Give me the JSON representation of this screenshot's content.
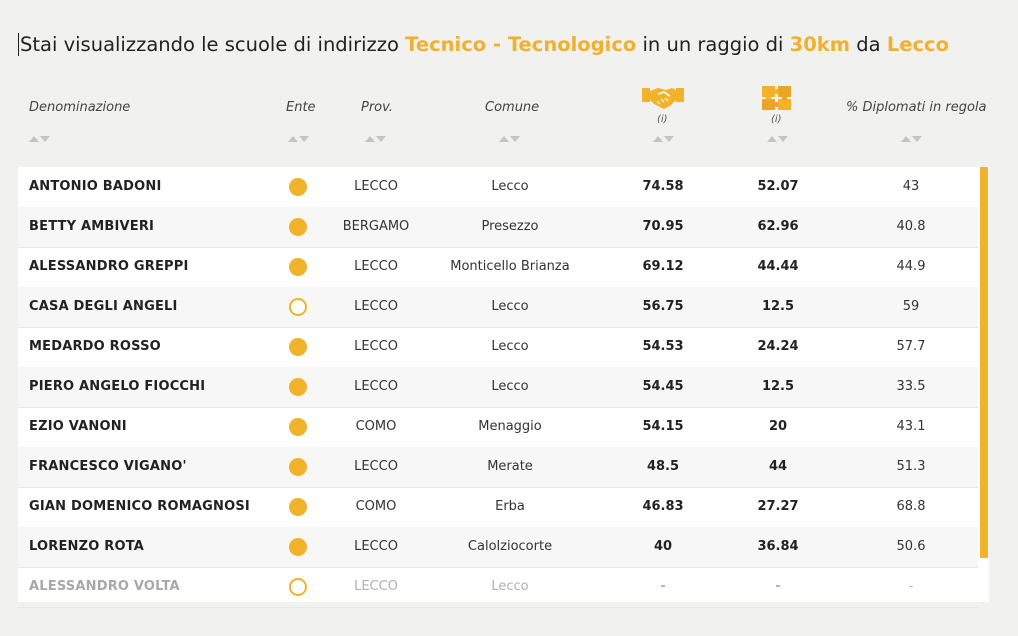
{
  "title": {
    "prefix": "Stai visualizzando le scuole di indirizzo ",
    "indirizzo": "Tecnico - Tecnologico",
    "middle": " in un raggio di ",
    "raggio": "30km",
    "da": " da ",
    "citta": "Lecco"
  },
  "headers": {
    "denominazione": "Denominazione",
    "ente": "Ente",
    "prov": "Prov.",
    "comune": "Comune",
    "icon1_info": "(i)",
    "icon2_info": "(i)",
    "diplomati": "% Diplomati in regola"
  },
  "icons": {
    "col1": "handshake-icon",
    "col2": "puzzle-icon"
  },
  "colors": {
    "accent": "#f3b22c"
  },
  "rows": [
    {
      "name": "ANTONIO BADONI",
      "ente": "filled",
      "prov": "LECCO",
      "comune": "Lecco",
      "v1": "74.58",
      "v2": "52.07",
      "v3": "43"
    },
    {
      "name": "BETTY AMBIVERI",
      "ente": "filled",
      "prov": "BERGAMO",
      "comune": "Presezzo",
      "v1": "70.95",
      "v2": "62.96",
      "v3": "40.8"
    },
    {
      "name": "ALESSANDRO GREPPI",
      "ente": "filled",
      "prov": "LECCO",
      "comune": "Monticello Brianza",
      "v1": "69.12",
      "v2": "44.44",
      "v3": "44.9"
    },
    {
      "name": "CASA DEGLI ANGELI",
      "ente": "empty",
      "prov": "LECCO",
      "comune": "Lecco",
      "v1": "56.75",
      "v2": "12.5",
      "v3": "59"
    },
    {
      "name": "MEDARDO ROSSO",
      "ente": "filled",
      "prov": "LECCO",
      "comune": "Lecco",
      "v1": "54.53",
      "v2": "24.24",
      "v3": "57.7"
    },
    {
      "name": "PIERO ANGELO FIOCCHI",
      "ente": "filled",
      "prov": "LECCO",
      "comune": "Lecco",
      "v1": "54.45",
      "v2": "12.5",
      "v3": "33.5"
    },
    {
      "name": "EZIO VANONI",
      "ente": "filled",
      "prov": "COMO",
      "comune": "Menaggio",
      "v1": "54.15",
      "v2": "20",
      "v3": "43.1"
    },
    {
      "name": "FRANCESCO VIGANO'",
      "ente": "filled",
      "prov": "LECCO",
      "comune": "Merate",
      "v1": "48.5",
      "v2": "44",
      "v3": "51.3"
    },
    {
      "name": "GIAN DOMENICO ROMAGNOSI",
      "ente": "filled",
      "prov": "COMO",
      "comune": "Erba",
      "v1": "46.83",
      "v2": "27.27",
      "v3": "68.8"
    },
    {
      "name": "LORENZO ROTA",
      "ente": "filled",
      "prov": "LECCO",
      "comune": "Calolziocorte",
      "v1": "40",
      "v2": "36.84",
      "v3": "50.6"
    },
    {
      "name": "ALESSANDRO VOLTA",
      "ente": "empty",
      "prov": "LECCO",
      "comune": "Lecco",
      "v1": "-",
      "v2": "-",
      "v3": "-"
    }
  ]
}
